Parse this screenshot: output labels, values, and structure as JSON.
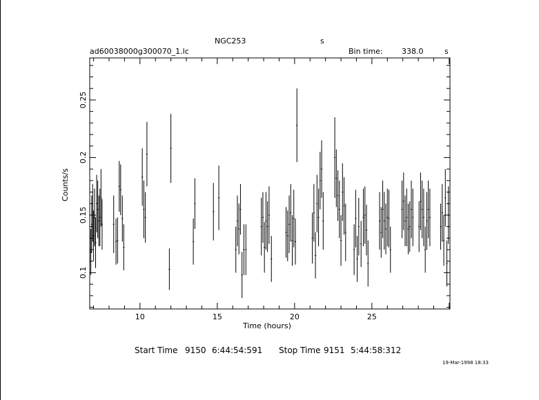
{
  "header": {
    "object": "NGC253",
    "object_unit": "s",
    "file": "ad60038000g300070_1.lc",
    "bin_label": "Bin time:",
    "bin_value": "338.0",
    "bin_unit": "s"
  },
  "footer": {
    "start_label": "Start Time",
    "start_day": "9150",
    "start_time": "6:44:54:591",
    "stop_label": "Stop Time",
    "stop_day": "9151",
    "stop_time": "5:44:58:312",
    "date_stamp": "19-Mar-1998 18:33"
  },
  "chart_data": {
    "type": "scatter",
    "title": "NGC253",
    "xlabel": "Time (hours)",
    "ylabel": "Counts/s",
    "xlim": [
      6.75,
      30.05
    ],
    "ylim": [
      0.0685,
      0.2865
    ],
    "xticks": [
      10,
      15,
      20,
      25
    ],
    "yticks": [
      0.1,
      0.15,
      0.2,
      0.25
    ],
    "ytick_labels": [
      "0.1",
      "0.15",
      "0.2",
      "0.25"
    ],
    "grid": false,
    "error_bars": true,
    "x": [
      6.82,
      6.88,
      6.94,
      7.0,
      7.06,
      7.13,
      7.2,
      7.27,
      7.34,
      7.41,
      7.48,
      7.55,
      8.3,
      8.45,
      8.55,
      8.66,
      8.75,
      8.86,
      8.95,
      10.15,
      10.25,
      10.35,
      10.45,
      11.9,
      12.0,
      13.45,
      13.55,
      14.75,
      15.1,
      16.2,
      16.3,
      16.4,
      16.5,
      16.6,
      16.72,
      16.85,
      17.85,
      17.95,
      18.05,
      18.15,
      18.25,
      18.35,
      18.5,
      19.45,
      19.55,
      19.65,
      19.75,
      19.85,
      19.95,
      20.05,
      20.15,
      21.15,
      21.25,
      21.35,
      21.45,
      21.55,
      21.65,
      21.75,
      21.85,
      22.6,
      22.7,
      22.8,
      22.9,
      23.0,
      23.1,
      23.2,
      23.3,
      23.85,
      23.95,
      24.05,
      24.15,
      24.3,
      24.45,
      24.55,
      24.65,
      24.75,
      25.5,
      25.6,
      25.7,
      25.8,
      25.9,
      26.0,
      26.1,
      26.2,
      26.95,
      27.05,
      27.15,
      27.25,
      27.35,
      27.45,
      27.55,
      27.65,
      28.05,
      28.15,
      28.25,
      28.35,
      28.45,
      28.55,
      28.65,
      28.75,
      29.45,
      29.55,
      29.65,
      29.75,
      29.85,
      29.95
    ],
    "y": [
      0.118,
      0.142,
      0.152,
      0.132,
      0.148,
      0.126,
      0.16,
      0.155,
      0.145,
      0.148,
      0.165,
      0.142,
      0.142,
      0.127,
      0.128,
      0.175,
      0.172,
      0.147,
      0.122,
      0.183,
      0.155,
      0.148,
      0.203,
      0.103,
      0.208,
      0.127,
      0.16,
      0.153,
      0.165,
      0.12,
      0.145,
      0.138,
      0.155,
      0.098,
      0.12,
      0.12,
      0.14,
      0.148,
      0.122,
      0.145,
      0.14,
      0.15,
      0.112,
      0.135,
      0.132,
      0.142,
      0.152,
      0.128,
      0.147,
      0.127,
      0.228,
      0.13,
      0.152,
      0.115,
      0.16,
      0.148,
      0.18,
      0.19,
      0.145,
      0.2,
      0.182,
      0.167,
      0.155,
      0.128,
      0.17,
      0.158,
      0.135,
      0.12,
      0.147,
      0.112,
      0.14,
      0.125,
      0.148,
      0.15,
      0.137,
      0.108,
      0.145,
      0.135,
      0.155,
      0.145,
      0.138,
      0.148,
      0.147,
      0.12,
      0.155,
      0.162,
      0.145,
      0.148,
      0.138,
      0.14,
      0.155,
      0.148,
      0.14,
      0.162,
      0.155,
      0.148,
      0.12,
      0.145,
      0.155,
      0.148,
      0.14,
      0.152,
      0.128,
      0.165,
      0.108,
      0.15
    ],
    "yerr": [
      0.02,
      0.025,
      0.025,
      0.022,
      0.025,
      0.022,
      0.025,
      0.025,
      0.022,
      0.025,
      0.025,
      0.022,
      0.025,
      0.02,
      0.02,
      0.022,
      0.022,
      0.02,
      0.02,
      0.025,
      0.025,
      0.022,
      0.028,
      0.018,
      0.03,
      0.02,
      0.022,
      0.025,
      0.028,
      0.02,
      0.022,
      0.022,
      0.022,
      0.02,
      0.022,
      0.022,
      0.025,
      0.022,
      0.022,
      0.025,
      0.022,
      0.025,
      0.02,
      0.022,
      0.022,
      0.025,
      0.025,
      0.022,
      0.025,
      0.02,
      0.032,
      0.022,
      0.025,
      0.02,
      0.025,
      0.025,
      0.025,
      0.025,
      0.025,
      0.035,
      0.025,
      0.022,
      0.025,
      0.022,
      0.025,
      0.025,
      0.025,
      0.022,
      0.025,
      0.02,
      0.025,
      0.02,
      0.025,
      0.025,
      0.022,
      0.02,
      0.025,
      0.022,
      0.025,
      0.025,
      0.022,
      0.025,
      0.025,
      0.02,
      0.025,
      0.025,
      0.022,
      0.025,
      0.022,
      0.022,
      0.025,
      0.025,
      0.022,
      0.025,
      0.025,
      0.025,
      0.02,
      0.025,
      0.025,
      0.025,
      0.02,
      0.025,
      0.022,
      0.025,
      0.02,
      0.025
    ],
    "xerr_hours": 0.047
  }
}
